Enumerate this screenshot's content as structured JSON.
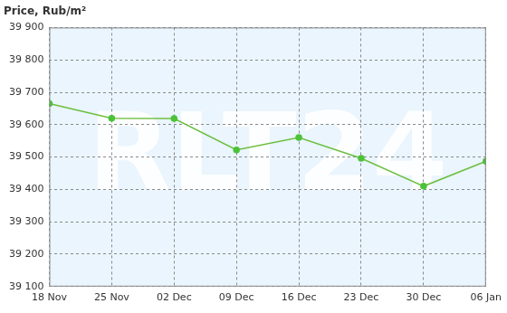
{
  "chart_data": {
    "type": "line",
    "y_label": "Price, Rub/m²",
    "annotations": [
      {
        "text": "RLT24"
      }
    ],
    "categories": [
      "18 Nov",
      "25 Nov",
      "02 Dec",
      "09 Dec",
      "16 Dec",
      "23 Dec",
      "30 Dec",
      "06 Jan"
    ],
    "values": [
      39665,
      39620,
      39619,
      39522,
      39560,
      39496,
      39410,
      39487
    ],
    "color": "#6dbf3f",
    "marker": "circle",
    "ylim": [
      39100,
      39900
    ],
    "yticks": [
      {
        "value": 39100,
        "label": "39 100"
      },
      {
        "value": 39200,
        "label": "39 200"
      },
      {
        "value": 39300,
        "label": "39 300"
      },
      {
        "value": 39400,
        "label": "39 400"
      },
      {
        "value": 39500,
        "label": "39 500"
      },
      {
        "value": 39600,
        "label": "39 600"
      },
      {
        "value": 39700,
        "label": "39 700"
      },
      {
        "value": 39800,
        "label": "39 800"
      },
      {
        "value": 39900,
        "label": "39 900"
      }
    ],
    "grid": true
  }
}
